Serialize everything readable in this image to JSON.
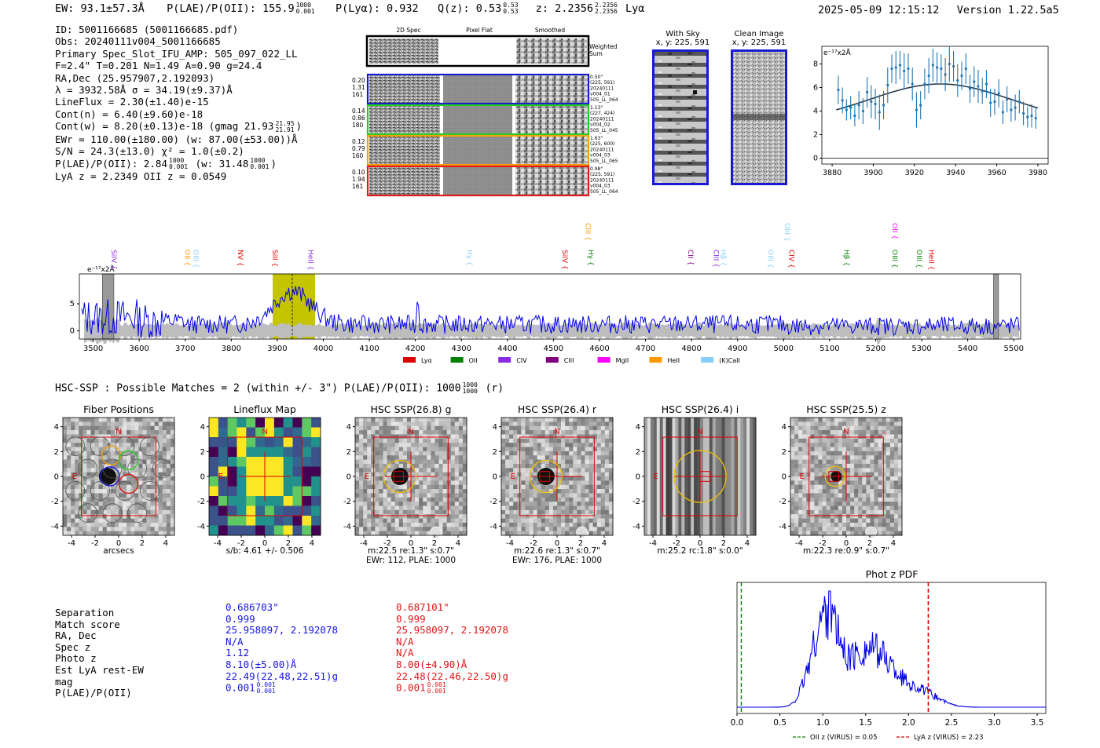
{
  "header": {
    "ew": "EW: 93.1±57.3Å",
    "plae_label": "P(LAE)/P(OII): 155.9",
    "plae_hi": "1000",
    "plae_lo": "0.001",
    "plya": "P(Lyα): 0.932",
    "qz": "Q(z): 0.53",
    "qz_hi": "0.53",
    "qz_lo": "0.53",
    "z": "z: 2.2356",
    "z_hi": "2.2356",
    "z_lo": "2.2356",
    "z_line": "Lyα",
    "timestamp": "2025-05-09 12:15:12",
    "version": "Version 1.22.5a5"
  },
  "info": {
    "id": "ID: 5001166685 (5001166685.pdf)",
    "obs": "Obs: 20240111v004_5001166685",
    "primary": "Primary Spec_Slot_IFU_AMP: 505_097_022_LL",
    "fwhm": "F=2.4\"  T=0.201  N=1.49  A=0.90  g=24.4",
    "radec": "RA,Dec (25.957907,2.192093)",
    "lambda": "λ = 3932.58Å  σ = 34.19(±9.37)Å",
    "lineflux": "LineFlux = 2.30(±1.40)e-15",
    "contn": "Cont(n) = 6.40(±9.60)e-18",
    "contw": "Cont(w) = 8.20(±0.13)e-18 (gmag 21.93",
    "contw_hi": "21.95",
    "contw_lo": "21.91",
    "contw_end": ")",
    "ewr": "EWr = 110.00(±180.00) (w: 87.00(±53.00))Å",
    "sn": "S/N = 24.3(±13.0)  χ² = 1.0(±0.2)",
    "plae": "P(LAE)/P(OII): 2.84",
    "plae_hi": "1000",
    "plae_lo": "0.001",
    "plae_w": "(w: 31.48",
    "plae_w_hi": "1000",
    "plae_w_lo": "0.001",
    "plae_end": ")",
    "lyaz": "LyA z = 2.2349   OII z = 0.0549"
  },
  "cutouts": {
    "col_labels": [
      "2D Spec",
      "Pixel Flat",
      "Smoothed"
    ],
    "weighted_sum": [
      "Weighted",
      "Sum"
    ],
    "rows": [
      {
        "left": [
          "0.20",
          "1.31",
          "161"
        ],
        "right": [
          "0.50\"",
          "(225, 591)",
          "20240111",
          "v004_01",
          "505_LL_064"
        ],
        "color": "#1a1ad0"
      },
      {
        "left": [
          "0.14",
          "0.86",
          "180"
        ],
        "right": [
          "1.13\"",
          "(227, 424)",
          "20240111",
          "v004_02",
          "505_LL_045"
        ],
        "color": "#22cc22"
      },
      {
        "left": [
          "0.12",
          "0.79",
          "160"
        ],
        "right": [
          "1.63\"",
          "(225, 600)",
          "20240111",
          "v004_03",
          "505_LL_065"
        ],
        "color": "#f0a010"
      },
      {
        "left": [
          "0.10",
          "1.94",
          "161"
        ],
        "right": [
          "0.98\"",
          "(225, 591)",
          "20240111",
          "v004_03",
          "505_LL_064"
        ],
        "color": "#e01a1a"
      }
    ]
  },
  "sky": {
    "with_sky": "With Sky",
    "with_sky_xy": "x, y: 225, 591",
    "clean": "Clean Image",
    "clean_xy": "x, y: 225, 591"
  },
  "zoom": {
    "unit": "e⁻¹⁷x2Å",
    "xticks": [
      "3880",
      "3900",
      "3920",
      "3940",
      "3960",
      "3980"
    ],
    "yticks": [
      "0",
      "2",
      "4",
      "6",
      "8"
    ],
    "xlim": [
      3875,
      3985
    ],
    "ylim": [
      -0.5,
      9.5
    ],
    "points": [
      [
        3883,
        5.8,
        1.2
      ],
      [
        3885,
        4.9,
        1.1
      ],
      [
        3887,
        4.1,
        0.9
      ],
      [
        3889,
        4.3,
        1.0
      ],
      [
        3891,
        3.6,
        0.9
      ],
      [
        3893,
        4.5,
        1.2
      ],
      [
        3895,
        4.0,
        1.1
      ],
      [
        3897,
        5.6,
        1.3
      ],
      [
        3899,
        4.8,
        1.4
      ],
      [
        3901,
        4.6,
        1.3
      ],
      [
        3903,
        3.9,
        1.5
      ],
      [
        3905,
        4.5,
        1.2
      ],
      [
        3907,
        6.2,
        1.5
      ],
      [
        3909,
        7.6,
        1.2
      ],
      [
        3911,
        7.7,
        1.4
      ],
      [
        3913,
        7.9,
        1.2
      ],
      [
        3915,
        7.4,
        1.5
      ],
      [
        3917,
        7.6,
        1.3
      ],
      [
        3919,
        6.3,
        1.4
      ],
      [
        3921,
        4.1,
        1.5
      ],
      [
        3923,
        4.5,
        1.2
      ],
      [
        3925,
        6.3,
        1.3
      ],
      [
        3927,
        7.0,
        1.5
      ],
      [
        3929,
        7.9,
        1.4
      ],
      [
        3931,
        7.7,
        1.3
      ],
      [
        3933,
        7.6,
        1.2
      ],
      [
        3935,
        7.1,
        1.4
      ],
      [
        3937,
        8.0,
        1.5
      ],
      [
        3939,
        7.8,
        1.3
      ],
      [
        3941,
        6.6,
        1.4
      ],
      [
        3943,
        7.0,
        1.2
      ],
      [
        3945,
        7.6,
        1.3
      ],
      [
        3947,
        5.9,
        1.2
      ],
      [
        3949,
        6.5,
        1.3
      ],
      [
        3951,
        6.1,
        1.4
      ],
      [
        3953,
        5.7,
        1.1
      ],
      [
        3955,
        6.3,
        1.2
      ],
      [
        3957,
        4.7,
        1.2
      ],
      [
        3959,
        4.8,
        1.1
      ],
      [
        3961,
        5.5,
        1.2
      ],
      [
        3963,
        3.9,
        1.0
      ],
      [
        3965,
        5.0,
        1.1
      ],
      [
        3967,
        4.1,
        1.0
      ],
      [
        3969,
        4.3,
        1.1
      ],
      [
        3971,
        4.8,
        1.0
      ],
      [
        3973,
        3.8,
        1.0
      ],
      [
        3975,
        3.5,
        0.9
      ],
      [
        3977,
        3.6,
        1.0
      ],
      [
        3979,
        3.4,
        0.9
      ]
    ],
    "fit": {
      "amp": 3.3,
      "mu": 3932.6,
      "sigma": 34.2,
      "base": 3.0
    }
  },
  "spectrum": {
    "unit": "e⁻¹⁷x2Å",
    "xticks": [
      "3500",
      "3600",
      "3700",
      "3800",
      "3900",
      "4000",
      "4100",
      "4200",
      "4300",
      "4400",
      "4500",
      "4600",
      "4700",
      "4800",
      "4900",
      "5000",
      "5100",
      "5200",
      "5300",
      "5400",
      "5500"
    ],
    "yticks": [
      "0",
      "5"
    ],
    "xlim": [
      3470,
      5515
    ],
    "ylim": [
      -1.5,
      10.5
    ],
    "highlight": [
      3890,
      3982
    ],
    "line_center": 3932.6,
    "lines": [
      {
        "name": "SiIV",
        "x": 3540,
        "color": "#8a2be2",
        "y": 0
      },
      {
        "name": "OII",
        "x": 3700,
        "color": "#ff9900",
        "y": 0
      },
      {
        "name": "OIII",
        "x": 3718,
        "color": "#87cefa",
        "y": 0
      },
      {
        "name": "NV",
        "x": 3815,
        "color": "#e00000",
        "y": 0
      },
      {
        "name": "SiII",
        "x": 3890,
        "color": "#e00000",
        "y": 0
      },
      {
        "name": "HeII",
        "x": 3968,
        "color": "#8a2be2",
        "y": 0
      },
      {
        "name": "Hγ",
        "x": 4312,
        "color": "#87cefa",
        "y": 0
      },
      {
        "name": "SiIV",
        "x": 4520,
        "color": "#e00000",
        "y": 0
      },
      {
        "name": "CIII",
        "x": 4570,
        "color": "#ff9900",
        "y": 1
      },
      {
        "name": "Hγ",
        "x": 4576,
        "color": "#008000",
        "y": 0
      },
      {
        "name": "CII",
        "x": 4793,
        "color": "#800080",
        "y": 0
      },
      {
        "name": "CIII",
        "x": 4848,
        "color": "#8a2be2",
        "y": 0
      },
      {
        "name": "Hβ",
        "x": 4864,
        "color": "#87cefa",
        "y": 0
      },
      {
        "name": "OIII",
        "x": 4967,
        "color": "#87cefa",
        "y": 0
      },
      {
        "name": "OIII",
        "x": 5003,
        "color": "#87cefa",
        "y": 1
      },
      {
        "name": "CIV",
        "x": 5012,
        "color": "#e00000",
        "y": 0
      },
      {
        "name": "Hβ",
        "x": 5132,
        "color": "#008000",
        "y": 0
      },
      {
        "name": "OII",
        "x": 5237,
        "color": "#ff00ff",
        "y": 1
      },
      {
        "name": "OIII",
        "x": 5237,
        "color": "#008000",
        "y": 0
      },
      {
        "name": "OIII",
        "x": 5290,
        "color": "#008000",
        "y": 0
      },
      {
        "name": "HeII",
        "x": 5316,
        "color": "#e00000",
        "y": 0
      }
    ],
    "legend": [
      {
        "label": "Lyα",
        "color": "#e00000"
      },
      {
        "label": "OII",
        "color": "#008000"
      },
      {
        "label": "CIV",
        "color": "#8a2be2"
      },
      {
        "label": "CIII",
        "color": "#800080"
      },
      {
        "label": "MgII",
        "color": "#ff00ff"
      },
      {
        "label": "HeII",
        "color": "#ff9900"
      },
      {
        "label": "(K)CaII",
        "color": "#87cefa"
      }
    ]
  },
  "hsc": {
    "title": "HSC-SSP : Possible Matches = 2 (within +/- 3\")  P(LAE)/P(OII): 1000",
    "plae_hi": "1000",
    "plae_lo": "1000",
    "suffix": "(r)",
    "ticks": [
      "-4",
      "-2",
      "0",
      "2",
      "4"
    ],
    "panels": [
      {
        "title": "Fiber Positions",
        "cap1": "arcsecs",
        "cap2": ""
      },
      {
        "title": "Lineflux Map",
        "cap1": "s/b: 4.61 +/- 0.506",
        "cap2": ""
      },
      {
        "title": "HSC SSP(26.8) g",
        "cap1": "m:22.5  re:1.3\"  s:0.7\"",
        "cap2": "EWr: 112, PLAE: 1000"
      },
      {
        "title": "HSC SSP(26.4) r",
        "cap1": "m:22.6  re:1.3\"  s:0.7\"",
        "cap2": "EWr: 176, PLAE: 1000"
      },
      {
        "title": "HSC SSP(26.4) i",
        "cap1": "m:25.2  rc:1.8\"  s:0.0\"",
        "cap2": ""
      },
      {
        "title": "HSC SSP(25.5) z",
        "cap1": "m:22.3  re:0.9\"  s:0.7\"",
        "cap2": ""
      }
    ],
    "n_label": "N",
    "e_label": "E"
  },
  "matches": {
    "labels": [
      "Separation",
      "Match score",
      "RA, Dec",
      "Spec z",
      "Photo z",
      "Est LyA rest-EW",
      "mag",
      "P(LAE)/P(OII)"
    ],
    "m1": [
      "0.686703\"",
      "0.999",
      "25.958097, 2.192078",
      "N/A",
      "1.12",
      "8.10(±5.00)Å",
      "22.49(22.48,22.51)g",
      "0.001"
    ],
    "m1_plae_hi": "0.001",
    "m1_plae_lo": "0.001",
    "m2": [
      "0.687101\"",
      "0.999",
      "25.958097, 2.192078",
      "N/A",
      "N/A",
      "8.00(±4.90)Å",
      "22.48(22.46,22.50)g",
      "0.001"
    ],
    "m2_plae_hi": "0.001",
    "m2_plae_lo": "0.001",
    "color1": "#1515e0",
    "color2": "#e01515"
  },
  "pdf": {
    "title": "Phot z PDF",
    "xticks": [
      "0.0",
      "0.5",
      "1.0",
      "1.5",
      "2.0",
      "2.5",
      "3.0",
      "3.5"
    ],
    "xlim": [
      0,
      3.6
    ],
    "oii_z": 0.05,
    "lya_z": 2.23,
    "legend_oii": "OII z (VIRUS) = 0.05",
    "legend_lya": "LyA z (VIRUS) = 2.23"
  }
}
